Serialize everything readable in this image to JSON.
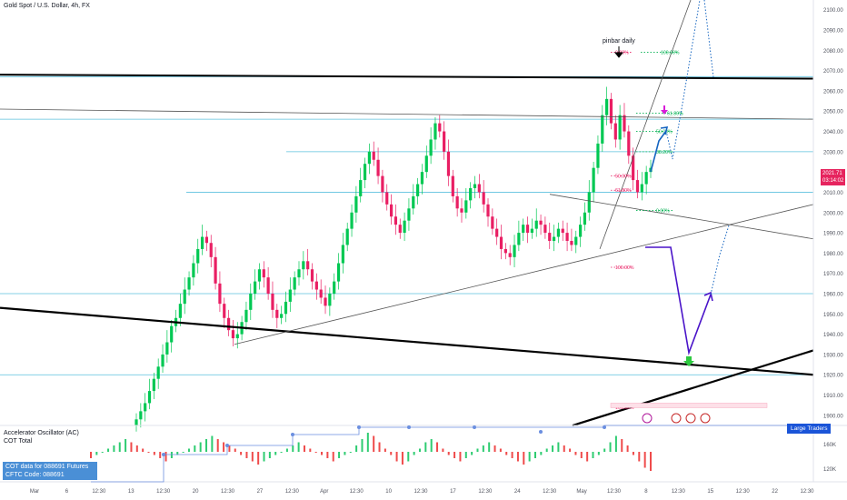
{
  "header": {
    "title": "Gold Spot / U.S. Dollar, 4h, FX"
  },
  "indicators": {
    "ac_label": "Accelerator Oscillator (AC)",
    "cot_label": "COT Total",
    "cot_badge_line1": "COT data for 088691 Futures",
    "cot_badge_line2": "CFTC Code: 088691",
    "large_traders": "Large Traders"
  },
  "price_badge": {
    "price": "2021.71",
    "countdown": "03:14:02",
    "color": "#e6245e"
  },
  "annotations": {
    "pinbar": "pinbar daily",
    "fib_labels": [
      "0.00%",
      "100.00%",
      "61.80%",
      "50.00%",
      "38.20%",
      "0.00%",
      "50.00%",
      "61.80%",
      "100.00%",
      "161.80%"
    ]
  },
  "colors": {
    "up": "#26a69a",
    "bull": "#00c853",
    "bear": "#e91e63",
    "hline": "#5bc0de",
    "blue_path": "#1565c0",
    "purple_path": "#4a14c9"
  },
  "chart_data": {
    "type": "candlestick",
    "symbol": "Gold Spot / U.S. Dollar",
    "timeframe": "4h",
    "y_axis": {
      "ticks": [
        "2100.00",
        "2090.00",
        "2080.00",
        "2070.00",
        "2060.00",
        "2050.00",
        "2040.00",
        "2030.00",
        "2020.00",
        "2010.00",
        "2000.00",
        "1990.00",
        "1980.00",
        "1970.00",
        "1960.00",
        "1950.00",
        "1940.00",
        "1930.00",
        "1920.00",
        "1910.00",
        "1900.00"
      ],
      "range": [
        1895,
        2103
      ]
    },
    "x_axis": {
      "ticks": [
        "Mar",
        "6",
        "12:30",
        "13",
        "12:30",
        "20",
        "12:30",
        "27",
        "12:30",
        "Apr",
        "12:30",
        "10",
        "12:30",
        "17",
        "12:30",
        "24",
        "12:30",
        "May",
        "12:30",
        "8",
        "12:30",
        "15",
        "12:30",
        "22",
        "12:30"
      ]
    },
    "sub_axis": {
      "ticks": [
        "160K",
        "120K"
      ]
    },
    "price_levels": [
      2067,
      2046,
      2030,
      2010,
      1960,
      1920
    ],
    "last_price": 2021.71,
    "closes": [
      1898,
      1902,
      1906,
      1912,
      1918,
      1924,
      1930,
      1936,
      1944,
      1948,
      1955,
      1962,
      1968,
      1975,
      1982,
      1988,
      1985,
      1978,
      1965,
      1955,
      1948,
      1942,
      1938,
      1940,
      1946,
      1952,
      1960,
      1966,
      1972,
      1968,
      1960,
      1952,
      1948,
      1950,
      1956,
      1962,
      1968,
      1972,
      1976,
      1972,
      1966,
      1962,
      1958,
      1954,
      1960,
      1966,
      1975,
      1984,
      1992,
      2000,
      2008,
      2016,
      2024,
      2030,
      2026,
      2018,
      2010,
      2004,
      1998,
      1994,
      1990,
      1996,
      2002,
      2008,
      2014,
      2020,
      2028,
      2036,
      2044,
      2040,
      2030,
      2018,
      2008,
      2002,
      2000,
      2006,
      2012,
      2014,
      2010,
      2004,
      1998,
      1992,
      1988,
      1982,
      1980,
      1978,
      1984,
      1990,
      1994,
      1990,
      1992,
      1996,
      1994,
      1990,
      1986,
      1988,
      1992,
      1990,
      1986,
      1984,
      1988,
      1994,
      2000,
      2010,
      2022,
      2034,
      2048,
      2056,
      2044,
      2036,
      2048,
      2040,
      2028,
      2016,
      2010,
      2014,
      2020,
      2022
    ],
    "ac_values": [
      -2,
      -1,
      0,
      1,
      2,
      3,
      4,
      3,
      2,
      1,
      0,
      -1,
      -2,
      -3,
      -2,
      -1,
      0,
      1,
      2,
      3,
      4,
      5,
      4,
      3,
      2,
      1,
      -1,
      -2,
      -3,
      -4,
      -3,
      -2,
      -1,
      0,
      1,
      2,
      3,
      2,
      1,
      0,
      -1,
      -2,
      -3,
      -2,
      -1,
      0,
      2,
      4,
      6,
      5,
      3,
      1,
      -1,
      -3,
      -4,
      -3,
      -1,
      1,
      3,
      4,
      3,
      1,
      -1,
      -2,
      -3,
      -2,
      -1,
      1,
      2,
      3,
      2,
      1,
      -1,
      -2,
      -3,
      -4,
      -3,
      -2,
      -1,
      1,
      2,
      3,
      2,
      1,
      -1,
      -2,
      -3,
      -2,
      -1,
      1,
      3,
      5,
      4,
      2,
      -1,
      -3,
      -5,
      -6
    ]
  }
}
